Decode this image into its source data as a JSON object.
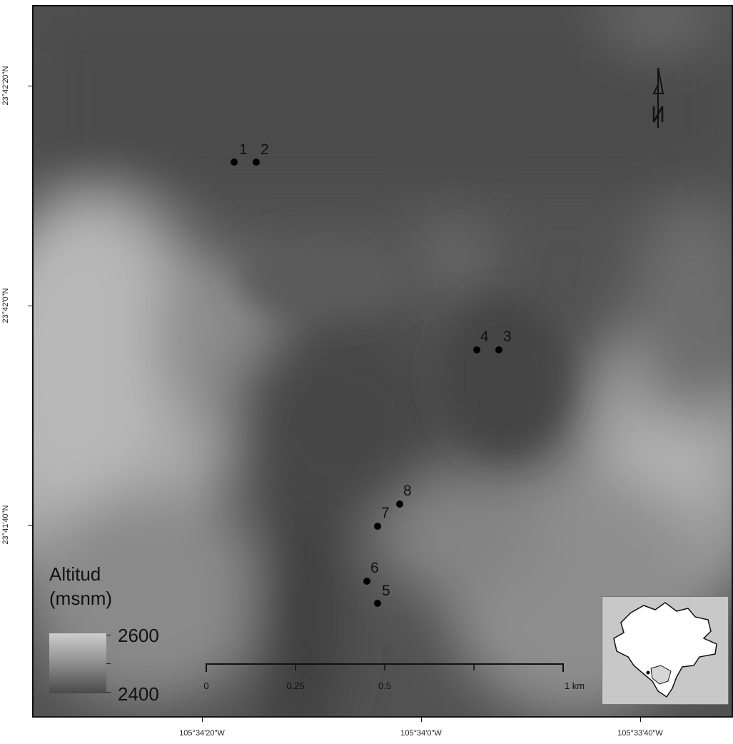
{
  "map": {
    "latitude_labels": [
      "23°42'20\"N",
      "23°42'0\"N",
      "23°41'40\"N"
    ],
    "longitude_labels": [
      "105°34'20\"W",
      "105°34'0\"W",
      "105°33'40\"W"
    ],
    "sites": [
      {
        "id": "1",
        "label": "1"
      },
      {
        "id": "2",
        "label": "2"
      },
      {
        "id": "3",
        "label": "3"
      },
      {
        "id": "4",
        "label": "4"
      },
      {
        "id": "5",
        "label": "5"
      },
      {
        "id": "6",
        "label": "6"
      },
      {
        "id": "7",
        "label": "7"
      },
      {
        "id": "8",
        "label": "8"
      }
    ],
    "north_arrow_icon": "north-arrow-icon"
  },
  "legend": {
    "title_line1": "Altitud",
    "title_line2": "(msnm)",
    "max": "2600",
    "min": "2400",
    "colors": {
      "high": "#cdcdcd",
      "low": "#4a4a4a"
    }
  },
  "scale": {
    "labels": [
      "0",
      "0.25",
      "0.5",
      "1 km"
    ]
  },
  "inset": {
    "icon": "region-outline-icon"
  }
}
